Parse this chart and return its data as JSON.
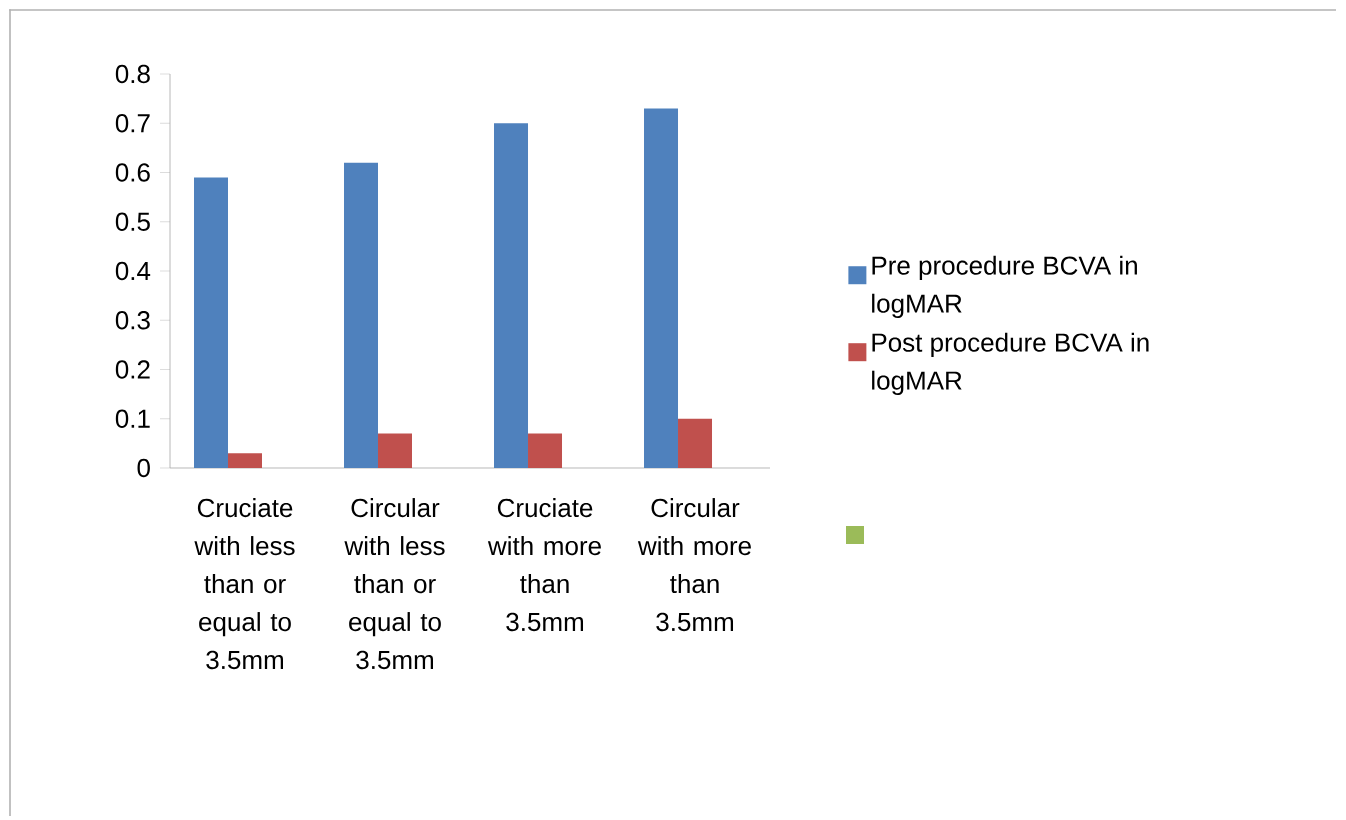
{
  "chart_data": {
    "type": "bar",
    "categories": [
      "Cruciate with less than or equal to 3.5mm",
      "Circular with less than or equal to 3.5mm",
      "Cruciate with more than 3.5mm",
      "Circular with more than 3.5mm"
    ],
    "series": [
      {
        "name": "Pre procedure BCVA in logMAR",
        "color": "#4f81bd",
        "values": [
          0.59,
          0.62,
          0.7,
          0.73
        ]
      },
      {
        "name": "Post procedure BCVA in logMAR",
        "color": "#c0504d",
        "values": [
          0.03,
          0.07,
          0.07,
          0.1
        ]
      },
      {
        "color": "#9bbb59",
        "values": [
          null,
          null,
          null,
          null
        ]
      }
    ],
    "ylim": [
      0,
      0.8
    ],
    "yticks": [
      0,
      0.1,
      0.2,
      0.3,
      0.4,
      0.5,
      0.6,
      0.7,
      0.8
    ],
    "legend": "right"
  }
}
